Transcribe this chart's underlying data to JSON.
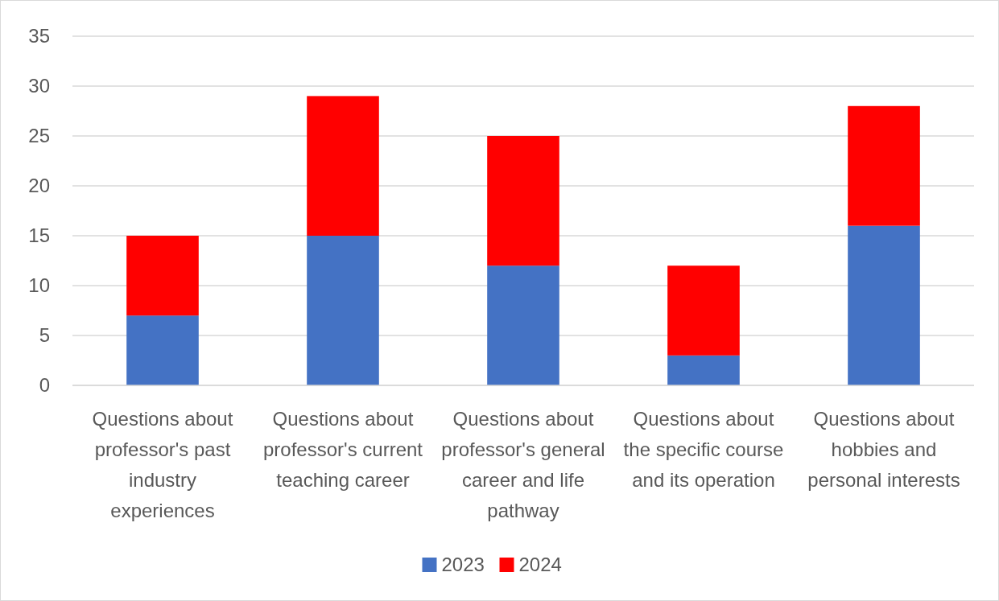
{
  "chart_data": {
    "type": "bar",
    "stacked": true,
    "categories": [
      "Questions about professor's past industry experiences",
      "Questions about professor's current teaching career",
      "Questions about professor's general career and life pathway",
      "Questions about the specific course and its operation",
      "Questions about hobbies and personal interests"
    ],
    "series": [
      {
        "name": "2023",
        "color": "#4472c4",
        "values": [
          7,
          15,
          12,
          3,
          16
        ]
      },
      {
        "name": "2024",
        "color": "#ff0000",
        "values": [
          8,
          14,
          13,
          9,
          12
        ]
      }
    ],
    "ylim": [
      0,
      35
    ],
    "yticks": [
      0,
      5,
      10,
      15,
      20,
      25,
      30,
      35
    ],
    "grid": "y",
    "legend": "bottom"
  }
}
